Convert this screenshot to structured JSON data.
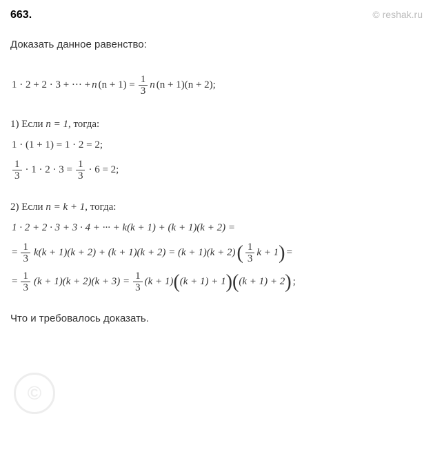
{
  "header": {
    "problem_number": "663.",
    "watermark": "© reshak.ru",
    "watermark_symbol": "©"
  },
  "task": {
    "title": "Доказать данное равенство:"
  },
  "main_eq": {
    "lhs_prefix": "1 · 2 + 2 · 3 + ··· + ",
    "n": "n",
    "n1": "(n + 1) = ",
    "rhs_n": "n",
    "rhs_tail": "(n + 1)(n + 2);"
  },
  "frac": {
    "one": "1",
    "three": "3"
  },
  "step1": {
    "title_prefix": "1) Если ",
    "title_cond": "n = 1",
    "title_suffix": ", тогда:",
    "line1": "1 · (1 + 1) = 1 · 2 = 2;",
    "line2_mid": " · 1 · 2 · 3 = ",
    "line2_tail": " · 6 = 2;"
  },
  "step2": {
    "title_prefix": "2) Если ",
    "title_cond": "n = k + 1",
    "title_suffix": ", тогда:",
    "line1": "1 · 2 + 2 · 3 + 3 · 4 + ··· + k(k + 1) + (k + 1)(k + 2) =",
    "line2_a": "= ",
    "line2_b": " k(k + 1)(k + 2) + (k + 1)(k + 2) = (k + 1)(k + 2) ",
    "line2_c": " k + 1",
    "line2_d": " =",
    "line3_a": "= ",
    "line3_b": " (k + 1)(k + 2)(k + 3) = ",
    "line3_c": " (k + 1)",
    "line3_d": "(k + 1) + 1",
    "line3_e": "(k + 1) + 2",
    "line3_f": ";"
  },
  "conclusion": {
    "text": "Что и требовалось доказать."
  },
  "colors": {
    "text": "#333333",
    "bold": "#000000",
    "watermark": "#bbbbbb",
    "bg": "#ffffff"
  }
}
